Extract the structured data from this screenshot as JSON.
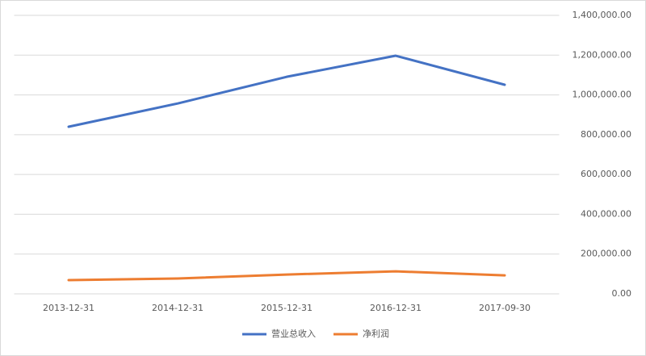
{
  "chart_data": {
    "type": "line",
    "categories": [
      "2013-12-31",
      "2014-12-31",
      "2015-12-31",
      "2016-12-31",
      "2017-09-30"
    ],
    "series": [
      {
        "name": "营业总收入",
        "color": "#4472c4",
        "values": [
          840000,
          957000,
          1091000,
          1197000,
          1051000
        ]
      },
      {
        "name": "净利润",
        "color": "#ed7d31",
        "values": [
          69000,
          77000,
          97000,
          113000,
          93000
        ]
      }
    ],
    "ylim": [
      0,
      1400000
    ],
    "yticks": [
      {
        "value": 0,
        "label": "0.00"
      },
      {
        "value": 200000,
        "label": "200,000.00"
      },
      {
        "value": 400000,
        "label": "400,000.00"
      },
      {
        "value": 600000,
        "label": "600,000.00"
      },
      {
        "value": 800000,
        "label": "800,000.00"
      },
      {
        "value": 1000000,
        "label": "1,000,000.00"
      },
      {
        "value": 1200000,
        "label": "1,200,000.00"
      },
      {
        "value": 1400000,
        "label": "1,400,000.00"
      }
    ],
    "grid": true,
    "y_axis_side": "right",
    "legend": "bottom"
  }
}
